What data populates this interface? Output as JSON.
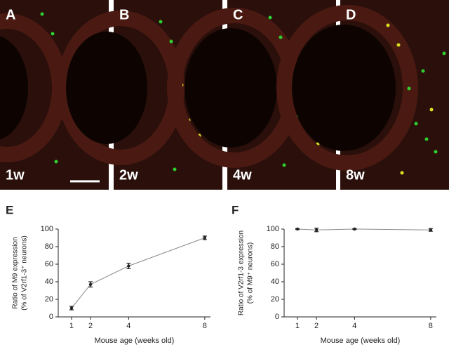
{
  "panels": [
    {
      "letter": "A",
      "age": "1w"
    },
    {
      "letter": "B",
      "age": "2w"
    },
    {
      "letter": "C",
      "age": "4w"
    },
    {
      "letter": "D",
      "age": "8w"
    }
  ],
  "chart_data": [
    {
      "type": "line",
      "label": "E",
      "x": [
        1,
        2,
        4,
        8
      ],
      "values": [
        10,
        37,
        58,
        90
      ],
      "errors": [
        2,
        3,
        3,
        2
      ],
      "xlim": [
        0.3,
        8.3
      ],
      "ylim": [
        0,
        100
      ],
      "xticks": [
        1,
        2,
        4,
        8
      ],
      "yticks": [
        0,
        20,
        40,
        60,
        80,
        100
      ],
      "ylabel_lines": [
        "Ratio of M9 expression",
        "(% of V2rf1-3⁺ neurons)"
      ],
      "xlabel": "Mouse age (weeks old)",
      "color": "#222222"
    },
    {
      "type": "line",
      "label": "F",
      "x": [
        1,
        2,
        4,
        8
      ],
      "values": [
        100,
        99,
        100,
        99
      ],
      "errors": [
        0.5,
        2,
        0.5,
        1.5
      ],
      "xlim": [
        0.3,
        8.3
      ],
      "ylim": [
        0,
        100
      ],
      "xticks": [
        1,
        2,
        4,
        8
      ],
      "yticks": [
        0,
        20,
        40,
        60,
        80,
        100
      ],
      "ylabel_lines": [
        "Ratio of V2rf1-3 expression",
        "(% of M9⁺ neurons)"
      ],
      "xlabel": "Mouse age (weeks old)",
      "color": "#222222"
    }
  ]
}
